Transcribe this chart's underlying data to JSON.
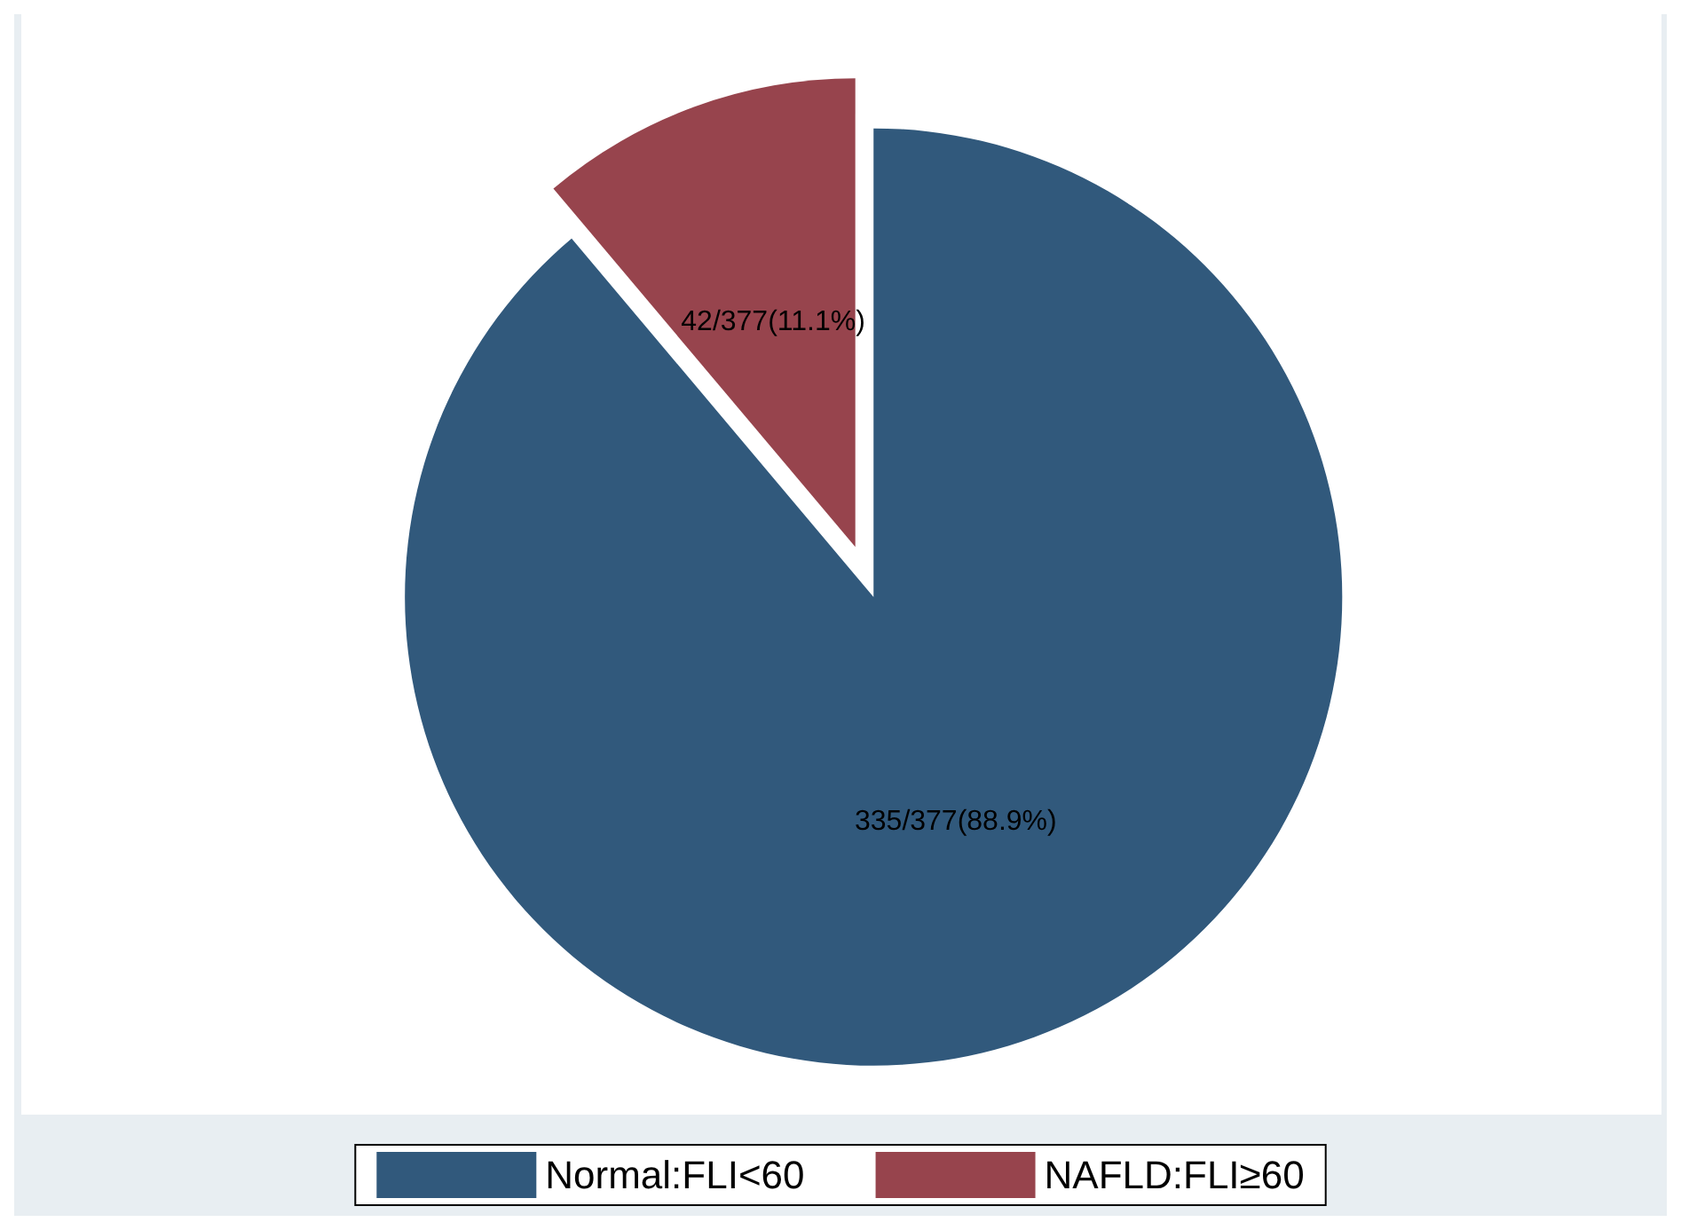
{
  "chart_data": {
    "type": "pie",
    "categories": [
      "Normal:FLI<60",
      "NAFLD:FLI≥60"
    ],
    "values": [
      335,
      42
    ],
    "colors": [
      "#31597c",
      "#97444d"
    ],
    "value_labels": [
      "335/377(88.9%)",
      "42/377(11.1%)"
    ],
    "legend": "bottom"
  }
}
